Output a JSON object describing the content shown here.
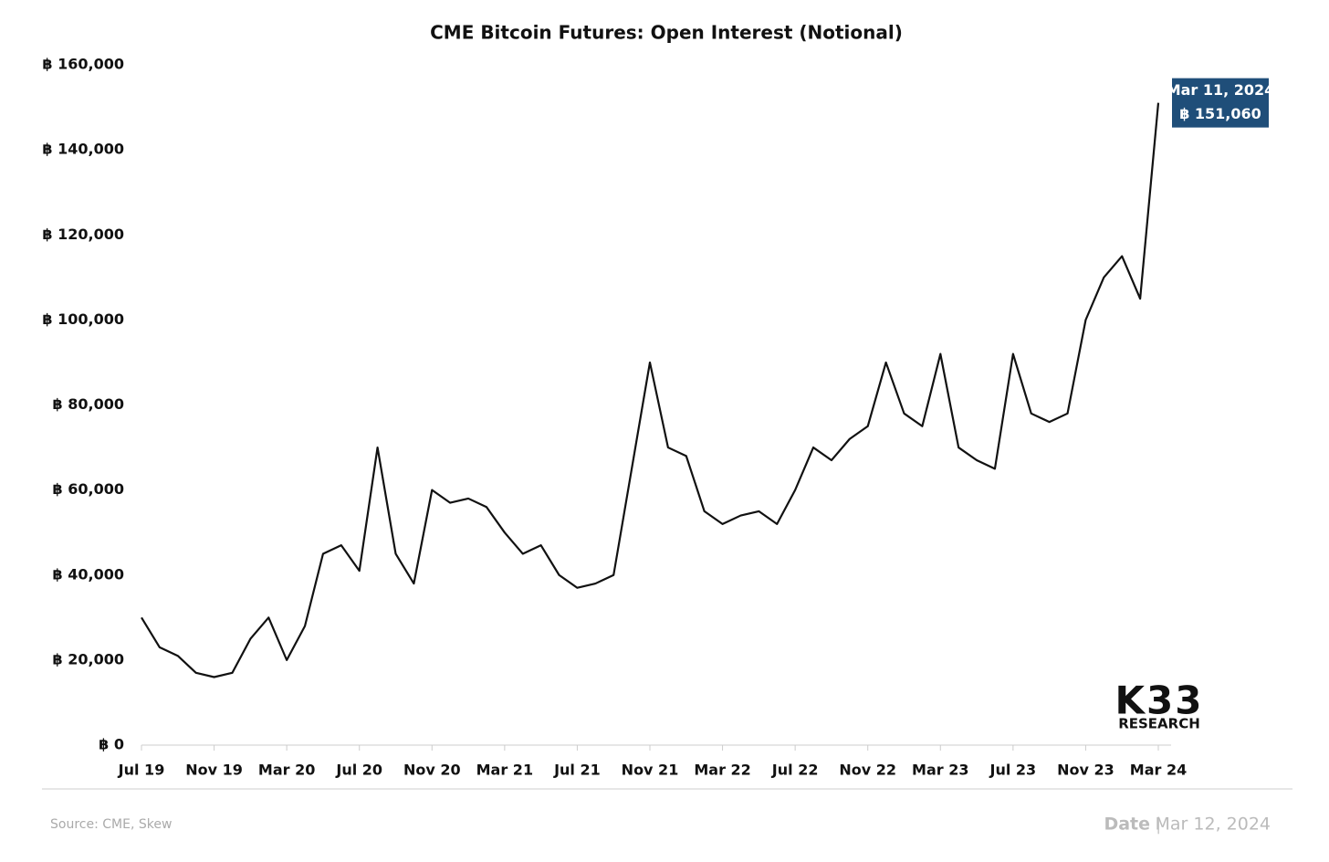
{
  "chart_data": {
    "type": "line",
    "title": "CME Bitcoin Futures: Open Interest (Notional)",
    "categories": [
      "Jul 19",
      null,
      null,
      null,
      "Nov 19",
      null,
      null,
      null,
      "Mar 20",
      null,
      null,
      null,
      "Jul 20",
      null,
      null,
      null,
      "Nov 20",
      null,
      null,
      null,
      "Mar 21",
      null,
      null,
      null,
      "Jul 21",
      null,
      null,
      null,
      "Nov 21",
      null,
      null,
      null,
      "Mar 22",
      null,
      null,
      null,
      "Jul 22",
      null,
      null,
      null,
      "Nov 22",
      null,
      null,
      null,
      "Mar 23",
      null,
      null,
      null,
      "Jul 23",
      null,
      null,
      null,
      "Nov 23",
      null,
      null,
      null,
      "Mar 24"
    ],
    "series": [
      {
        "color": "#111111",
        "values": [
          30000,
          23000,
          21000,
          17000,
          16000,
          17000,
          25000,
          30000,
          20000,
          28000,
          45000,
          47000,
          41000,
          70000,
          45000,
          38000,
          60000,
          57000,
          58000,
          56000,
          50000,
          45000,
          47000,
          40000,
          37000,
          38000,
          40000,
          65000,
          90000,
          70000,
          68000,
          55000,
          52000,
          54000,
          55000,
          52000,
          60000,
          70000,
          67000,
          72000,
          75000,
          90000,
          78000,
          75000,
          92000,
          70000,
          67000,
          65000,
          92000,
          78000,
          76000,
          78000,
          100000,
          110000,
          115000,
          105000,
          151060
        ]
      }
    ],
    "ylim": [
      0,
      160000
    ],
    "yticks": [
      {
        "value": 0,
        "label": "฿ 0"
      },
      {
        "value": 20000,
        "label": "฿ 20,000"
      },
      {
        "value": 40000,
        "label": "฿ 40,000"
      },
      {
        "value": 60000,
        "label": "฿ 60,000"
      },
      {
        "value": 80000,
        "label": "฿ 80,000"
      },
      {
        "value": 100000,
        "label": "฿ 100,000"
      },
      {
        "value": 120000,
        "label": "฿ 120,000"
      },
      {
        "value": 140000,
        "label": "฿ 140,000"
      },
      {
        "value": 160000,
        "label": "฿ 160,000"
      }
    ],
    "annotation": {
      "date": "Mar 11, 2024",
      "value": 151060,
      "label": "฿ 151,060"
    },
    "source": "Source: CME, Skew",
    "date_label": "Date",
    "date": "Mar 12, 2024",
    "logo": "K33",
    "logo_sub": "RESEARCH"
  }
}
